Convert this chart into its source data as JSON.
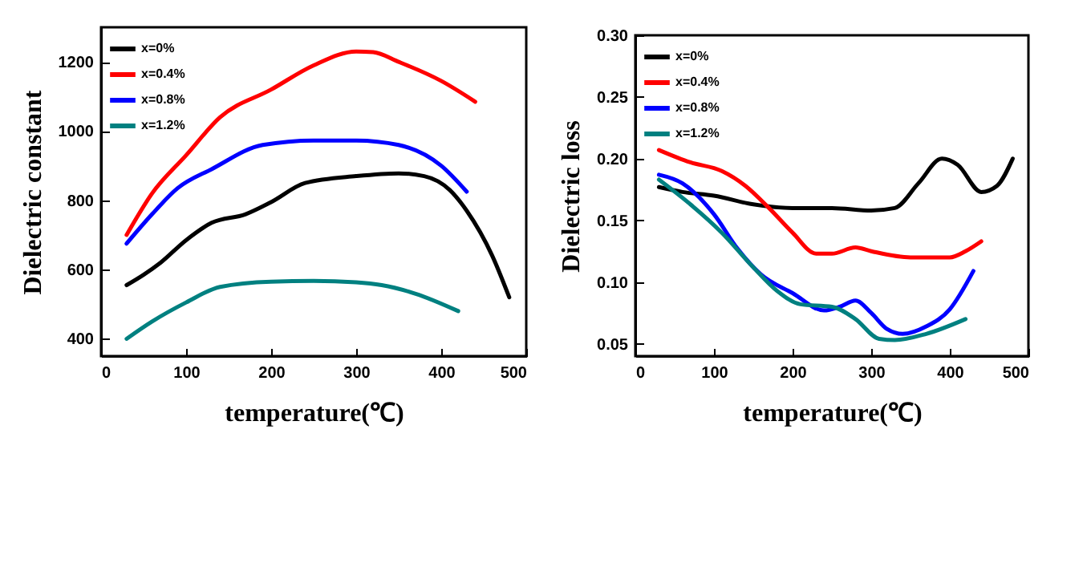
{
  "chart_data": [
    {
      "type": "line",
      "xlabel": "temperature(℃)",
      "ylabel": "Dielectric constant",
      "xlim": [
        0,
        500
      ],
      "ylim": [
        350,
        1300
      ],
      "xticks": [
        0,
        100,
        200,
        300,
        400,
        500
      ],
      "yticks": [
        400,
        600,
        800,
        1000,
        1200
      ],
      "legend": "top left",
      "grid": false,
      "series": [
        {
          "name": "x=0%",
          "color": "#000000",
          "x": [
            30,
            50,
            70,
            100,
            130,
            170,
            200,
            240,
            300,
            350,
            380,
            410,
            430,
            460,
            480
          ],
          "values": [
            555,
            585,
            620,
            685,
            735,
            760,
            795,
            850,
            870,
            878,
            870,
            830,
            770,
            640,
            520
          ]
        },
        {
          "name": "x=0.4%",
          "color": "#ff0000",
          "x": [
            30,
            60,
            100,
            140,
            200,
            250,
            300,
            320,
            350,
            400,
            440
          ],
          "values": [
            700,
            820,
            930,
            1040,
            1120,
            1190,
            1230,
            1228,
            1200,
            1145,
            1085
          ]
        },
        {
          "name": "x=0.8%",
          "color": "#0000ff",
          "x": [
            30,
            60,
            90,
            130,
            190,
            250,
            300,
            350,
            400,
            430
          ],
          "values": [
            675,
            760,
            835,
            890,
            960,
            973,
            973,
            960,
            900,
            825
          ]
        },
        {
          "name": "x=1.2%",
          "color": "#008080",
          "x": [
            30,
            60,
            100,
            140,
            200,
            250,
            300,
            330,
            370,
            420
          ],
          "values": [
            400,
            450,
            505,
            550,
            565,
            567,
            563,
            555,
            530,
            480
          ]
        }
      ]
    },
    {
      "type": "line",
      "xlabel": "temperature(℃)",
      "ylabel": "Dielectric loss",
      "xlim": [
        0,
        500
      ],
      "ylim": [
        0.04,
        0.3
      ],
      "xticks": [
        0,
        100,
        200,
        300,
        400,
        500
      ],
      "yticks": [
        {
          "value": 0.05,
          "label": "0.05"
        },
        {
          "value": 0.1,
          "label": "0.10"
        },
        {
          "value": 0.15,
          "label": "0.15"
        },
        {
          "value": 0.2,
          "label": "0.20"
        },
        {
          "value": 0.25,
          "label": "0.25"
        },
        {
          "value": 0.3,
          "label": "0.30"
        }
      ],
      "legend": "top left",
      "grid": false,
      "series": [
        {
          "name": "x=0%",
          "color": "#000000",
          "x": [
            30,
            60,
            100,
            150,
            200,
            250,
            300,
            330,
            360,
            390,
            410,
            440,
            460,
            480
          ],
          "values": [
            0.177,
            0.173,
            0.17,
            0.163,
            0.16,
            0.16,
            0.158,
            0.16,
            0.18,
            0.2,
            0.195,
            0.173,
            0.178,
            0.2
          ]
        },
        {
          "name": "x=0.4%",
          "color": "#ff0000",
          "x": [
            30,
            70,
            110,
            140,
            170,
            200,
            230,
            250,
            280,
            300,
            350,
            400,
            420,
            440
          ],
          "values": [
            0.207,
            0.197,
            0.19,
            0.178,
            0.16,
            0.14,
            0.123,
            0.123,
            0.128,
            0.125,
            0.12,
            0.12,
            0.125,
            0.133
          ]
        },
        {
          "name": "x=0.8%",
          "color": "#0000ff",
          "x": [
            30,
            60,
            100,
            130,
            160,
            200,
            240,
            260,
            280,
            300,
            320,
            340,
            370,
            400,
            430
          ],
          "values": [
            0.187,
            0.18,
            0.155,
            0.127,
            0.106,
            0.091,
            0.077,
            0.08,
            0.085,
            0.075,
            0.062,
            0.058,
            0.064,
            0.078,
            0.109
          ]
        },
        {
          "name": "x=1.2%",
          "color": "#008080",
          "x": [
            30,
            70,
            110,
            150,
            180,
            210,
            250,
            280,
            310,
            330,
            370,
            420
          ],
          "values": [
            0.183,
            0.163,
            0.14,
            0.112,
            0.093,
            0.082,
            0.08,
            0.07,
            0.054,
            0.053,
            0.058,
            0.07
          ]
        }
      ]
    }
  ]
}
